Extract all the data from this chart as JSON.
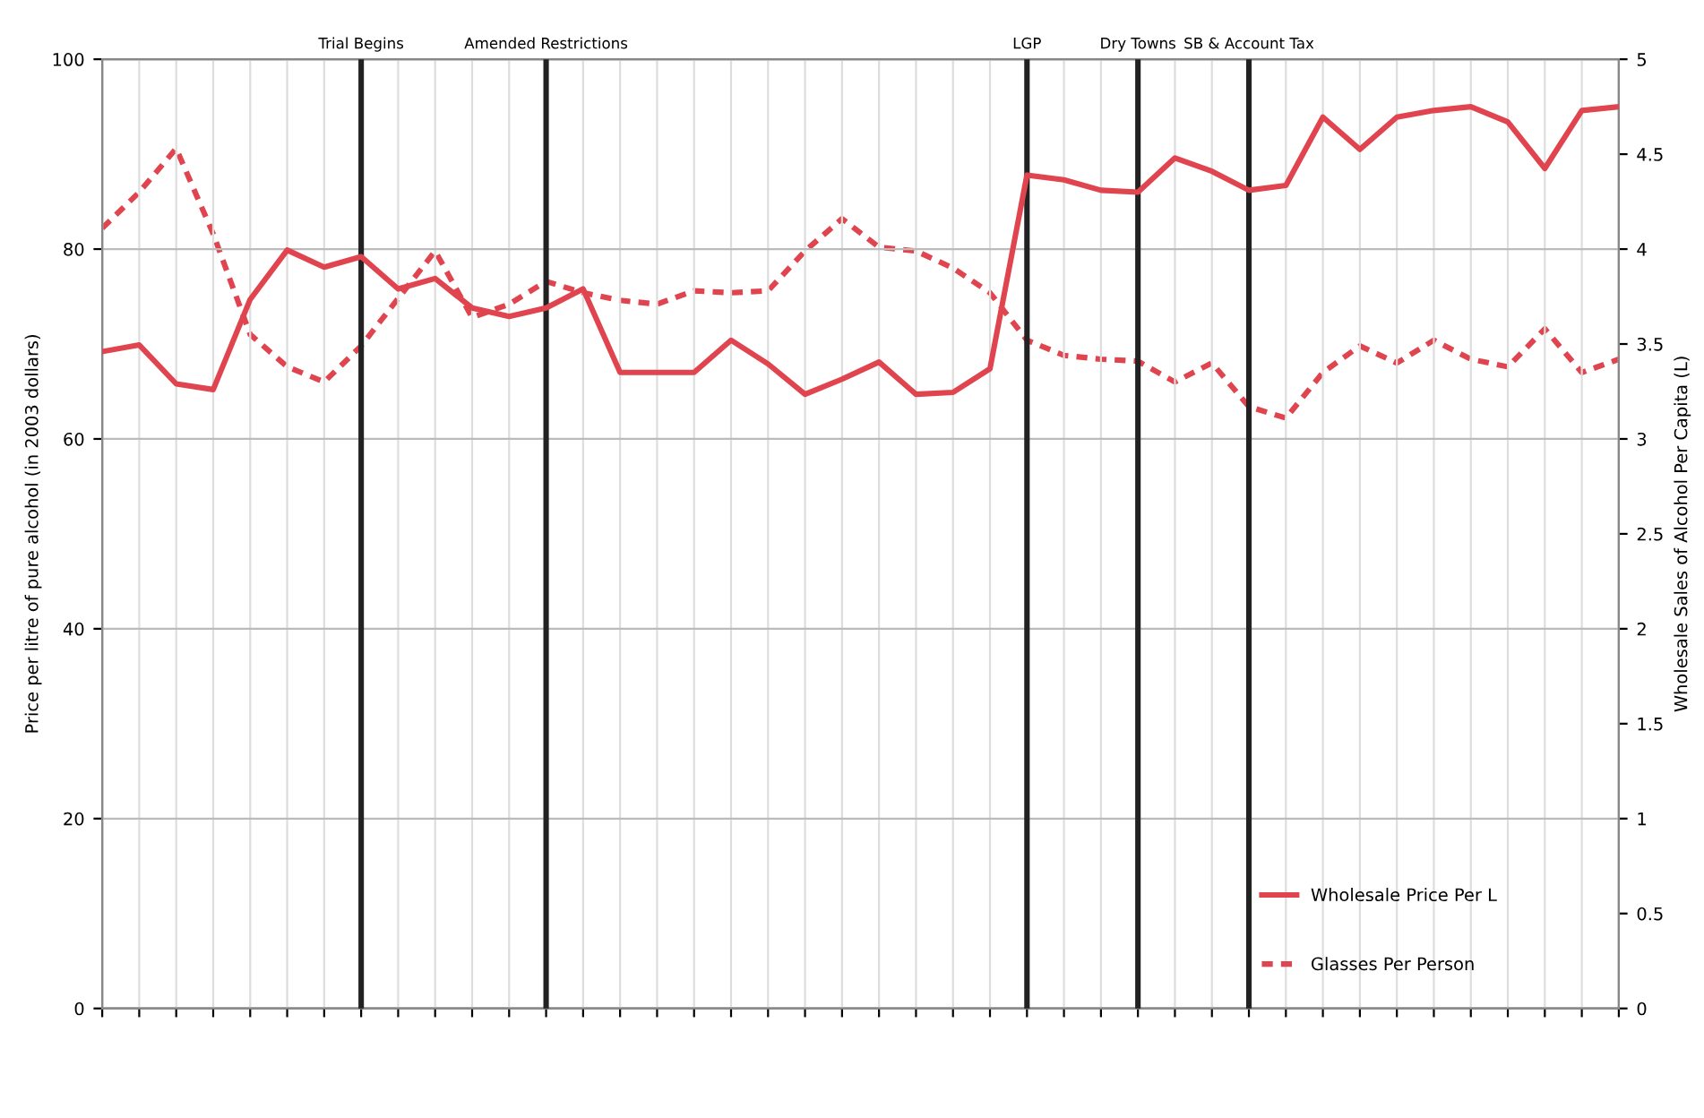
{
  "chart_data": {
    "type": "line",
    "ylabel": "Price per litre of pure alcohol (in 2003 dollars)",
    "y2label": "Wholesale Sales of Alcohol Per Capita (L)",
    "categories": [
      null,
      null,
      null,
      null,
      null,
      null,
      null,
      null,
      null,
      null,
      null,
      null,
      null,
      null,
      null,
      null,
      null,
      null,
      null,
      null,
      null,
      null,
      null,
      null,
      null,
      null,
      null,
      null,
      null,
      null,
      null,
      null,
      null,
      null,
      null,
      null,
      null,
      null,
      null,
      null,
      null,
      null
    ],
    "series": [
      {
        "name": "Wholesale Price Per L",
        "color": "#e0454f",
        "line_style": "solid",
        "values": [
          69.2,
          69.9,
          65.8,
          65.2,
          74.7,
          79.9,
          78.1,
          79.2,
          75.8,
          76.9,
          73.8,
          72.9,
          73.8,
          75.8,
          67.0,
          67.0,
          67.0,
          70.4,
          67.9,
          64.7,
          66.3,
          68.1,
          64.7,
          64.9,
          67.4,
          87.8,
          87.3,
          86.2,
          86.0,
          89.6,
          88.2,
          86.2,
          86.7,
          93.9,
          90.5,
          93.9,
          94.6,
          95.0,
          93.4,
          88.5,
          94.6,
          95.0
        ]
      },
      {
        "name": "Glasses Per Person",
        "color": "#e0454f",
        "line_style": "dashed",
        "axis": "y2",
        "values": [
          4.11,
          4.3,
          4.53,
          4.08,
          3.55,
          3.38,
          3.3,
          3.49,
          3.74,
          3.99,
          3.64,
          3.71,
          3.83,
          3.77,
          3.73,
          3.71,
          3.78,
          3.77,
          3.78,
          3.99,
          4.16,
          4.01,
          3.99,
          3.9,
          3.77,
          3.52,
          3.44,
          3.42,
          3.41,
          3.3,
          3.4,
          3.17,
          3.11,
          3.35,
          3.49,
          3.4,
          3.52,
          3.42,
          3.38,
          3.58,
          3.35,
          3.42
        ]
      }
    ],
    "ylim": [
      0,
      100
    ],
    "yticks": [
      0,
      20,
      40,
      60,
      80,
      100
    ],
    "y2lim": [
      0,
      5
    ],
    "y2ticks": [
      0,
      0.5,
      1,
      1.5,
      2,
      2.5,
      3,
      3.5,
      4,
      4.5,
      5
    ],
    "annotations": [
      "Trial Begins",
      "Amended Restrictions",
      "LGP",
      "Dry Towns",
      "SB & Account Tax"
    ],
    "grid": true,
    "legend": "bottom right"
  }
}
